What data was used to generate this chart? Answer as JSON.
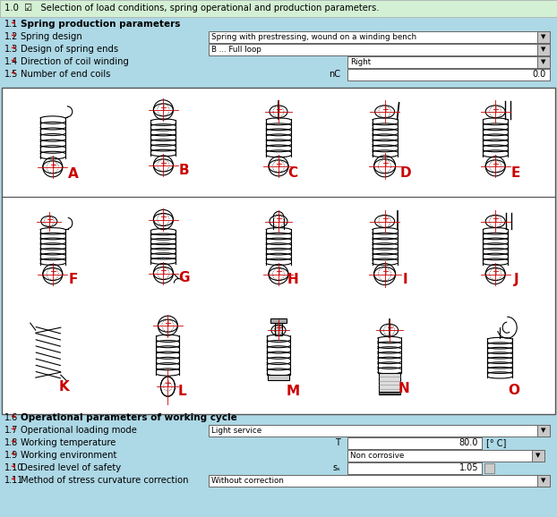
{
  "title_row": "1.0  ☑   Selection of load conditions, spring operational and production parameters.",
  "title_bg": "#d4f0d4",
  "main_bg": "#add8e6",
  "white": "#ffffff",
  "gray_box": "#c8c8c8",
  "red": "#cc0000",
  "black": "#000000",
  "spring_labels_row1": [
    "A",
    "B",
    "C",
    "D",
    "E"
  ],
  "spring_labels_row2": [
    "F",
    "G",
    "H",
    "I",
    "J"
  ],
  "spring_labels_row3": [
    "K",
    "L",
    "M",
    "N",
    "O"
  ]
}
